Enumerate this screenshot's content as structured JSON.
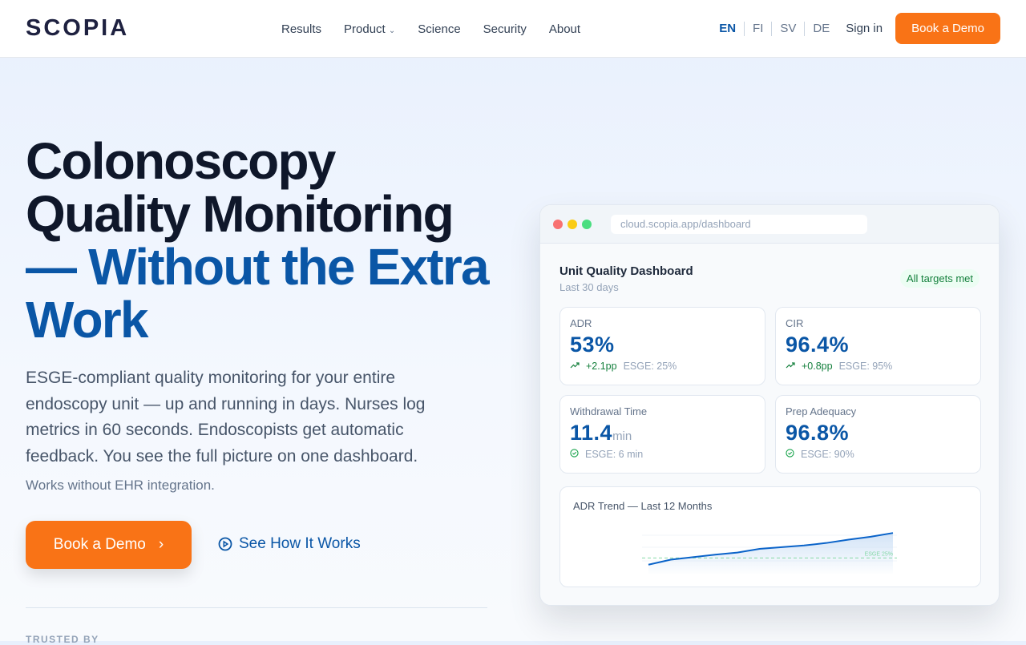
{
  "header": {
    "logo": "SCOPIA",
    "nav": [
      "Results",
      "Product",
      "Science",
      "Security",
      "About"
    ],
    "languages": [
      "EN",
      "FI",
      "SV",
      "DE"
    ],
    "active_language": "EN",
    "sign_in": "Sign in",
    "cta": "Book a Demo"
  },
  "hero": {
    "title_line1": "Colonoscopy",
    "title_line2": "Quality Monitoring",
    "title_line3": "— Without the Extra",
    "title_line4": "Work",
    "lead": "ESGE-compliant quality monitoring for your entire endoscopy unit — up and running in days. Nurses log metrics in 60 seconds. Endoscopists get automatic feedback. You see the full picture on one dashboard.",
    "note": "Works without EHR integration.",
    "primary_cta": "Book a Demo",
    "secondary_cta": "See How It Works",
    "trusted_by": "TRUSTED BY"
  },
  "dashboard": {
    "url": "cloud.scopia.app/dashboard",
    "title": "Unit Quality Dashboard",
    "subtitle": "Last 30 days",
    "badge": "All targets met",
    "cards": [
      {
        "label": "ADR",
        "value": "53%",
        "unit": "",
        "delta": "+2.1pp",
        "target": "ESGE: 25%",
        "icon": "trend-up-icon"
      },
      {
        "label": "CIR",
        "value": "96.4%",
        "unit": "",
        "delta": "+0.8pp",
        "target": "ESGE: 95%",
        "icon": "trend-up-icon"
      },
      {
        "label": "Withdrawal Time",
        "value": "11.4",
        "unit": "min",
        "delta": "",
        "target": "ESGE: 6 min",
        "icon": "check-circle-icon"
      },
      {
        "label": "Prep Adequacy",
        "value": "96.8%",
        "unit": "",
        "delta": "",
        "target": "ESGE: 90%",
        "icon": "check-circle-icon"
      }
    ],
    "trend": {
      "title": "ADR Trend — Last 12 Months",
      "reference_label": "ESGE 25%",
      "reference": 25,
      "values": [
        21.8,
        24.2,
        25.4,
        26.6,
        27.6,
        29.4,
        30.2,
        31,
        32.2,
        33.8,
        35.2,
        37
      ],
      "ylim": [
        19,
        39
      ]
    }
  },
  "colors": {
    "accent": "#f97316",
    "brand_blue": "#0a56a6",
    "success": "#15803d"
  }
}
